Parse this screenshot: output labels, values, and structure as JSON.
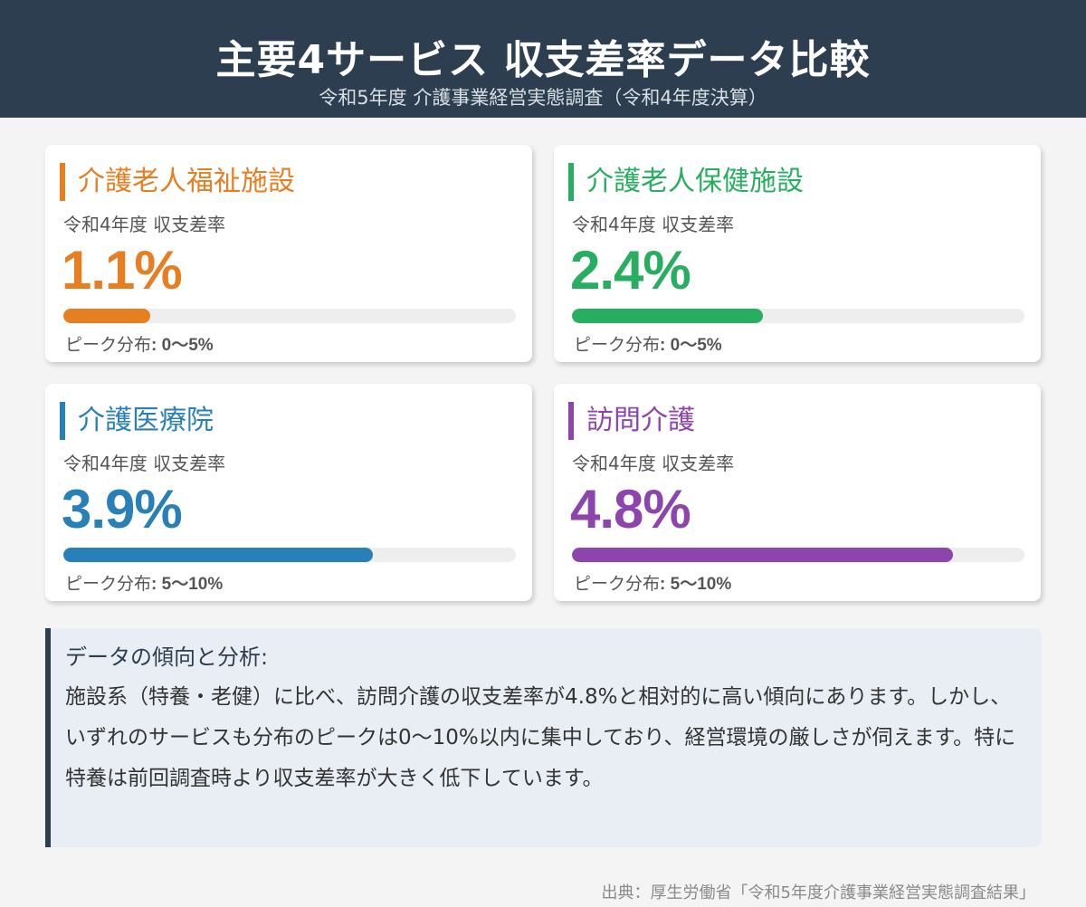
{
  "header": {
    "title": "主要4サービス 収支差率データ比較",
    "subtitle": "令和5年度 介護事業経営実態調査（令和4年度決算）"
  },
  "cards": [
    {
      "name": "介護老人福祉施設",
      "label": "令和4年度 収支差率",
      "rate": "1.1%",
      "rate_value": 1.1,
      "peak_label": "ピーク分布",
      "peak": ": 0〜5%",
      "color": "#e67e22"
    },
    {
      "name": "介護老人保健施設",
      "label": "令和4年度 収支差率",
      "rate": "2.4%",
      "rate_value": 2.4,
      "peak_label": "ピーク分布",
      "peak": ": 0〜5%",
      "color": "#27ae60"
    },
    {
      "name": "介護医療院",
      "label": "令和4年度 収支差率",
      "rate": "3.9%",
      "rate_value": 3.9,
      "peak_label": "ピーク分布",
      "peak": ": 5〜10%",
      "color": "#2980b9"
    },
    {
      "name": "訪問介護",
      "label": "令和4年度 収支差率",
      "rate": "4.8%",
      "rate_value": 4.8,
      "peak_label": "ピーク分布",
      "peak": ": 5〜10%",
      "color": "#8e44ad"
    }
  ],
  "bar_scale_max": 5.7,
  "analysis": {
    "title": "データの傾向と分析:",
    "body": "施設系（特養・老健）に比べ、訪問介護の収支差率が4.8%と相対的に高い傾向にあります。しかし、いずれのサービスも分布のピークは0〜10%以内に集中しており、経営環境の厳しさが伺えます。特に特養は前回調査時より収支差率が大きく低下しています。"
  },
  "source": "出典：厚生労働省「令和5年度介護事業経営実態調査結果」"
}
